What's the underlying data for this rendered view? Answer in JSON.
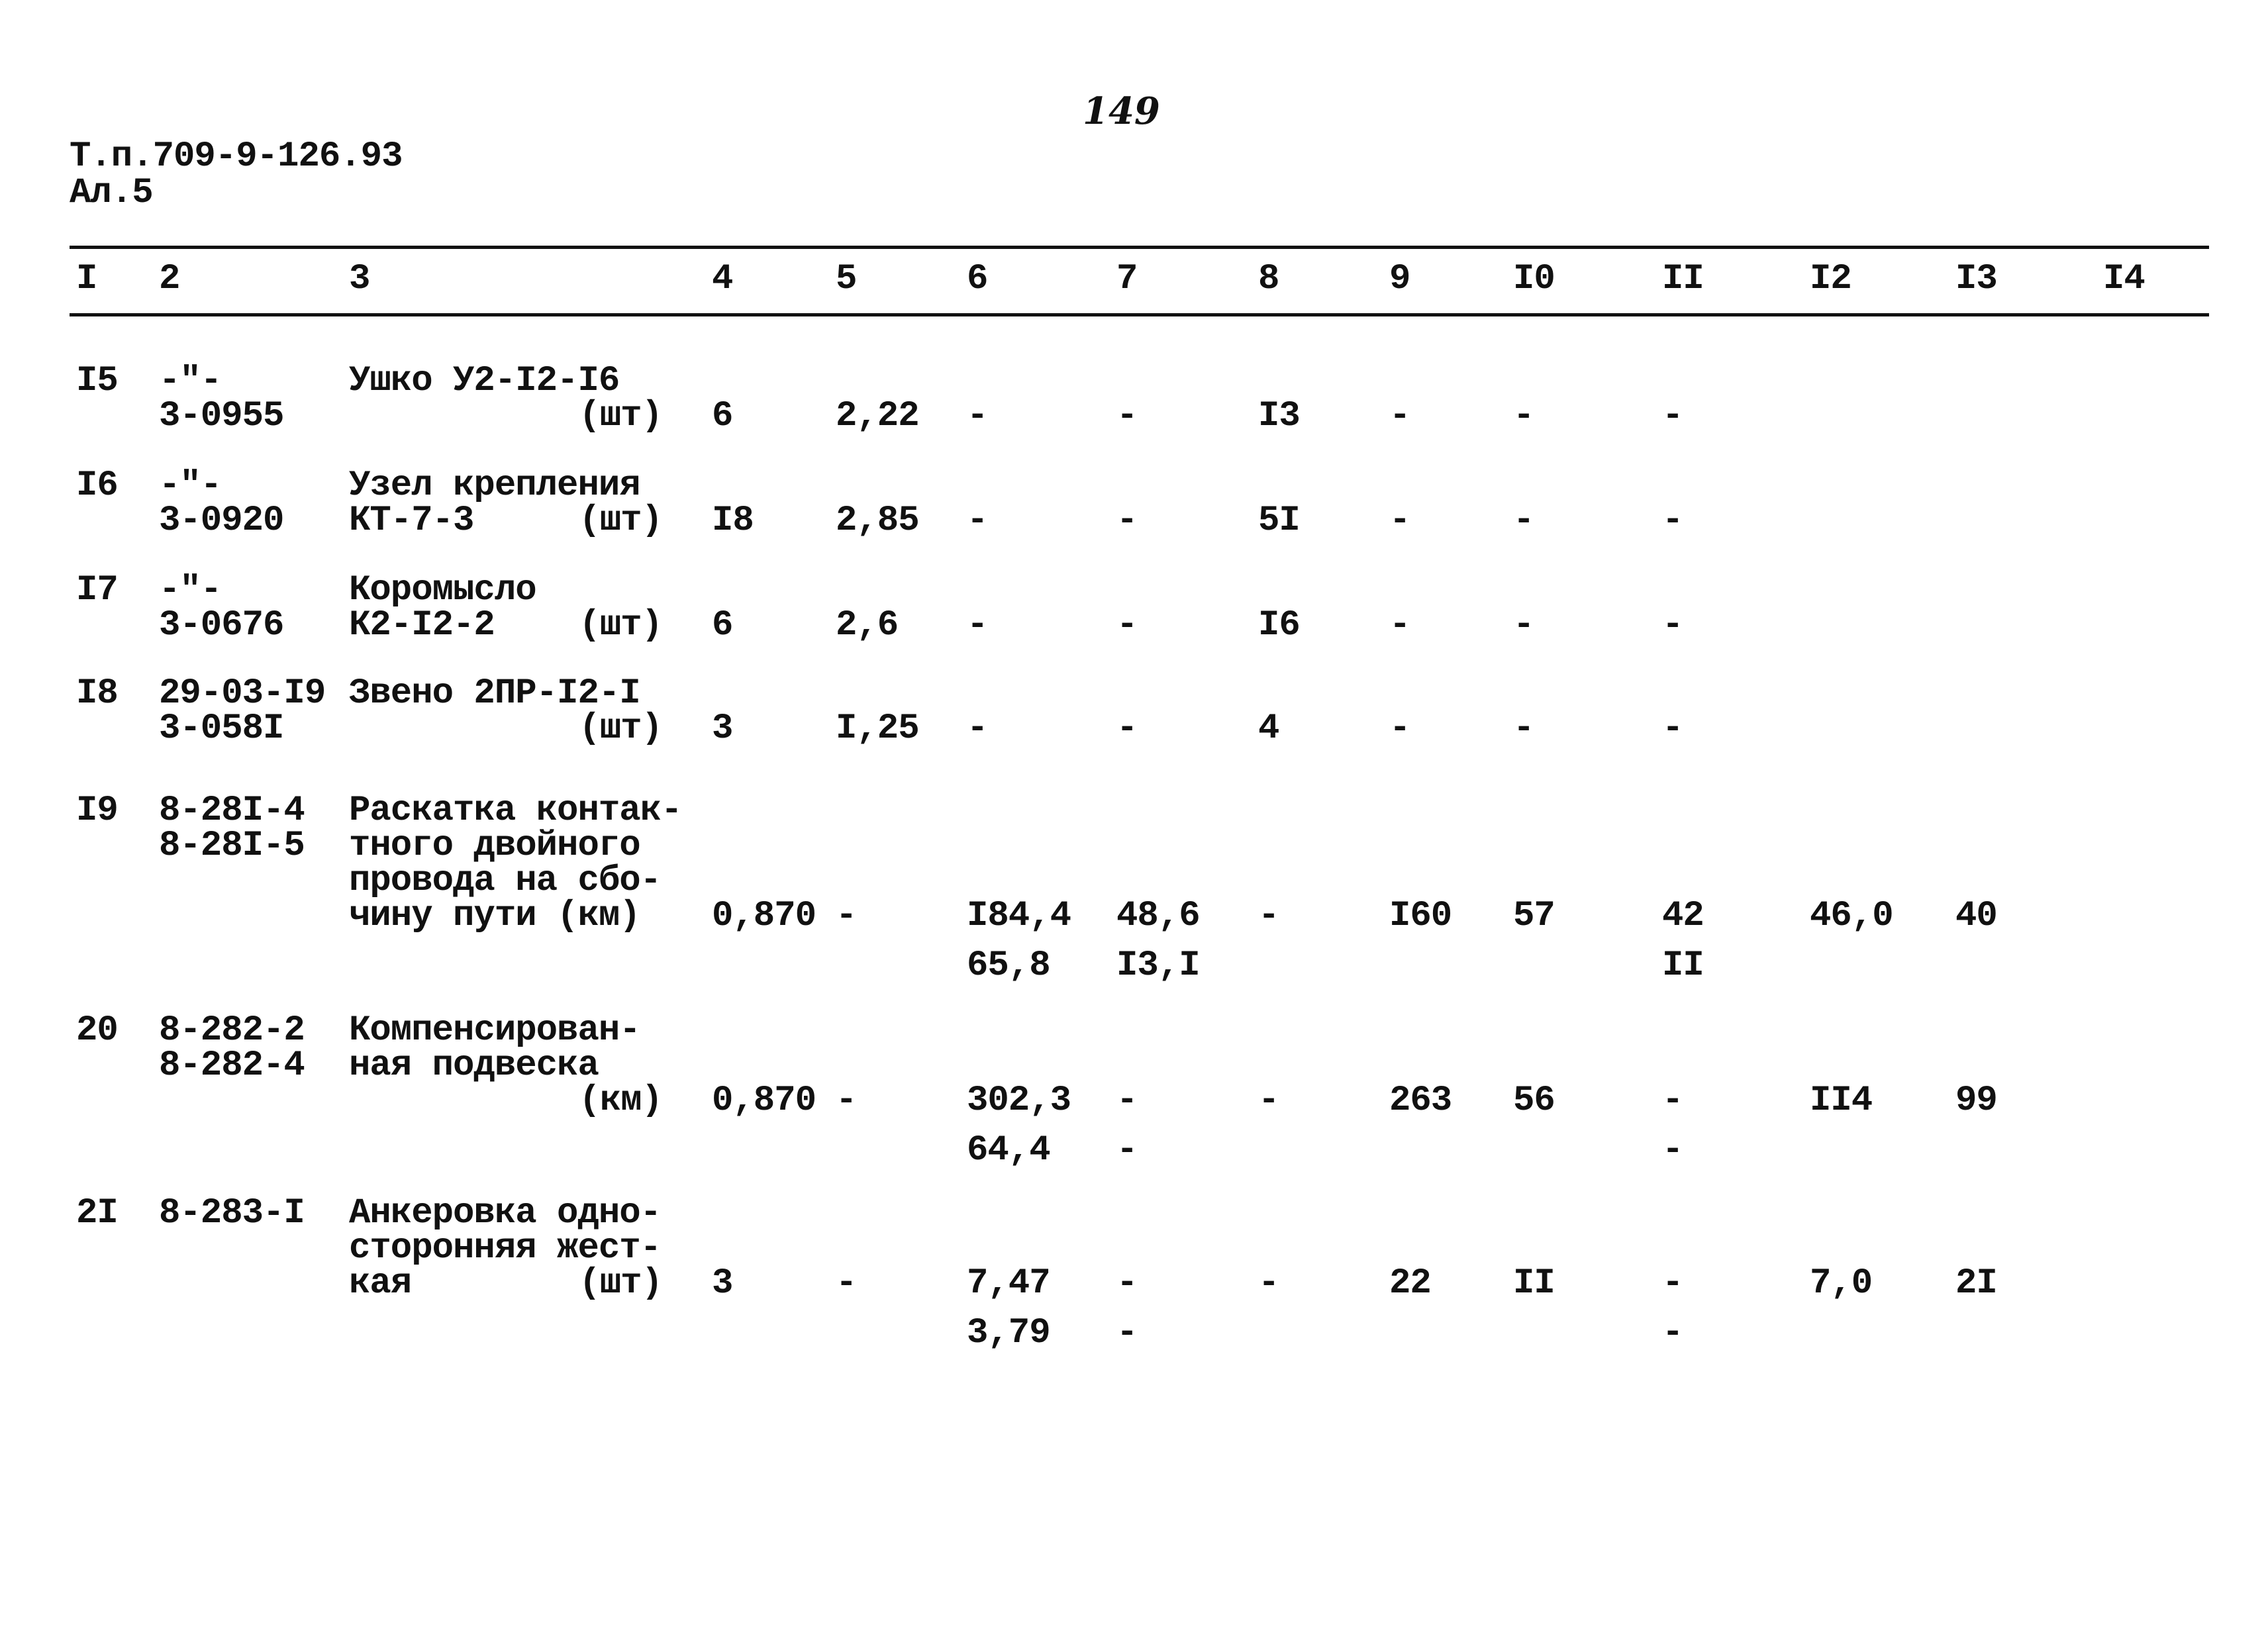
{
  "page_number": "149",
  "header": {
    "code": "Т.п.709-9-126.93",
    "sheet": "Ал.5"
  },
  "columns": [
    "I",
    "2",
    "3",
    "4",
    "5",
    "6",
    "7",
    "8",
    "9",
    "I0",
    "II",
    "I2",
    "I3",
    "I4"
  ],
  "rows": [
    {
      "lines": [
        [
          {
            "col": "1",
            "text": "I5"
          },
          {
            "col": "2",
            "text": "-\"-"
          },
          {
            "col": "3",
            "text": "Ушко У2-I2-I6"
          }
        ],
        [
          {
            "col": "2",
            "text": "3-0955"
          },
          {
            "col": "unit",
            "text": "(шт)"
          },
          {
            "col": "4",
            "text": "6"
          },
          {
            "col": "5",
            "text": "2,22"
          },
          {
            "col": "6",
            "text": "-"
          },
          {
            "col": "7",
            "text": "-"
          },
          {
            "col": "8",
            "text": "I3"
          },
          {
            "col": "9",
            "text": "-"
          },
          {
            "col": "10",
            "text": "-"
          },
          {
            "col": "11",
            "text": "-"
          }
        ]
      ]
    },
    {
      "lines": [
        [
          {
            "col": "1",
            "text": "I6"
          },
          {
            "col": "2",
            "text": "-\"-"
          },
          {
            "col": "3",
            "text": "Узел крепления"
          }
        ],
        [
          {
            "col": "2",
            "text": "3-0920"
          },
          {
            "col": "3",
            "text": "КТ-7-3"
          },
          {
            "col": "unit",
            "text": "(шт)"
          },
          {
            "col": "4",
            "text": "I8"
          },
          {
            "col": "5",
            "text": "2,85"
          },
          {
            "col": "6",
            "text": "-"
          },
          {
            "col": "7",
            "text": "-"
          },
          {
            "col": "8",
            "text": "5I"
          },
          {
            "col": "9",
            "text": "-"
          },
          {
            "col": "10",
            "text": "-"
          },
          {
            "col": "11",
            "text": "-"
          }
        ]
      ]
    },
    {
      "lines": [
        [
          {
            "col": "1",
            "text": "I7"
          },
          {
            "col": "2",
            "text": "-\"-"
          },
          {
            "col": "3",
            "text": "Коромысло"
          }
        ],
        [
          {
            "col": "2",
            "text": "3-0676"
          },
          {
            "col": "3",
            "text": "К2-I2-2"
          },
          {
            "col": "unit",
            "text": "(шт)"
          },
          {
            "col": "4",
            "text": "6"
          },
          {
            "col": "5",
            "text": "2,6"
          },
          {
            "col": "6",
            "text": "-"
          },
          {
            "col": "7",
            "text": "-"
          },
          {
            "col": "8",
            "text": "I6"
          },
          {
            "col": "9",
            "text": "-"
          },
          {
            "col": "10",
            "text": "-"
          },
          {
            "col": "11",
            "text": "-"
          }
        ]
      ]
    },
    {
      "lines": [
        [
          {
            "col": "1",
            "text": "I8"
          },
          {
            "col": "2",
            "text": "29-03-I9"
          },
          {
            "col": "3",
            "text": "Звено 2ПР-I2-I"
          }
        ],
        [
          {
            "col": "2",
            "text": "3-058I"
          },
          {
            "col": "unit",
            "text": "(шт)"
          },
          {
            "col": "4",
            "text": "3"
          },
          {
            "col": "5",
            "text": "I,25"
          },
          {
            "col": "6",
            "text": "-"
          },
          {
            "col": "7",
            "text": "-"
          },
          {
            "col": "8",
            "text": "4"
          },
          {
            "col": "9",
            "text": "-"
          },
          {
            "col": "10",
            "text": "-"
          },
          {
            "col": "11",
            "text": "-"
          }
        ]
      ]
    },
    {
      "lines": [
        [
          {
            "col": "1",
            "text": "I9"
          },
          {
            "col": "2",
            "text": "8-28I-4"
          },
          {
            "col": "3",
            "text": "Раскатка контак-"
          }
        ],
        [
          {
            "col": "2",
            "text": "8-28I-5"
          },
          {
            "col": "3",
            "text": "тного двойного"
          }
        ],
        [
          {
            "col": "3",
            "text": "провода на сбо-"
          }
        ],
        [
          {
            "col": "3",
            "text": "чину пути (км)"
          },
          {
            "col": "4",
            "text": "0,870"
          },
          {
            "col": "5",
            "text": "-"
          },
          {
            "col": "6",
            "text": "I84,4"
          },
          {
            "col": "7",
            "text": "48,6"
          },
          {
            "col": "8",
            "text": "-"
          },
          {
            "col": "9",
            "text": "I60"
          },
          {
            "col": "10",
            "text": "57"
          },
          {
            "col": "11",
            "text": "42"
          },
          {
            "col": "12",
            "text": "46,0"
          },
          {
            "col": "13",
            "text": "40"
          }
        ],
        [
          {
            "col": "6",
            "text": "65,8"
          },
          {
            "col": "7",
            "text": "I3,I"
          },
          {
            "col": "11",
            "text": "II"
          }
        ]
      ]
    },
    {
      "lines": [
        [
          {
            "col": "1",
            "text": "20"
          },
          {
            "col": "2",
            "text": "8-282-2"
          },
          {
            "col": "3",
            "text": "Компенсирован-"
          }
        ],
        [
          {
            "col": "2",
            "text": "8-282-4"
          },
          {
            "col": "3",
            "text": "ная подвеска"
          }
        ],
        [
          {
            "col": "unit",
            "text": "(км)"
          },
          {
            "col": "4",
            "text": "0,870"
          },
          {
            "col": "5",
            "text": "-"
          },
          {
            "col": "6",
            "text": "302,3"
          },
          {
            "col": "7",
            "text": "-"
          },
          {
            "col": "8",
            "text": "-"
          },
          {
            "col": "9",
            "text": "263"
          },
          {
            "col": "10",
            "text": "56"
          },
          {
            "col": "11",
            "text": "-"
          },
          {
            "col": "12",
            "text": "II4"
          },
          {
            "col": "13",
            "text": "99"
          }
        ],
        [
          {
            "col": "6",
            "text": "64,4"
          },
          {
            "col": "7",
            "text": "-"
          },
          {
            "col": "11",
            "text": "-"
          }
        ]
      ]
    },
    {
      "lines": [
        [
          {
            "col": "1",
            "text": "2I"
          },
          {
            "col": "2",
            "text": "8-283-I"
          },
          {
            "col": "3",
            "text": "Анкеровка одно-"
          }
        ],
        [
          {
            "col": "3",
            "text": "сторонняя жест-"
          }
        ],
        [
          {
            "col": "3",
            "text": "кая"
          },
          {
            "col": "unit",
            "text": "(шт)"
          },
          {
            "col": "4",
            "text": "3"
          },
          {
            "col": "5",
            "text": "-"
          },
          {
            "col": "6",
            "text": "7,47"
          },
          {
            "col": "7",
            "text": "-"
          },
          {
            "col": "8",
            "text": "-"
          },
          {
            "col": "9",
            "text": "22"
          },
          {
            "col": "10",
            "text": "II"
          },
          {
            "col": "11",
            "text": "-"
          },
          {
            "col": "12",
            "text": "7,0"
          },
          {
            "col": "13",
            "text": "2I"
          }
        ],
        [
          {
            "col": "6",
            "text": "3,79"
          },
          {
            "col": "7",
            "text": "-"
          },
          {
            "col": "11",
            "text": "-"
          }
        ]
      ]
    }
  ]
}
